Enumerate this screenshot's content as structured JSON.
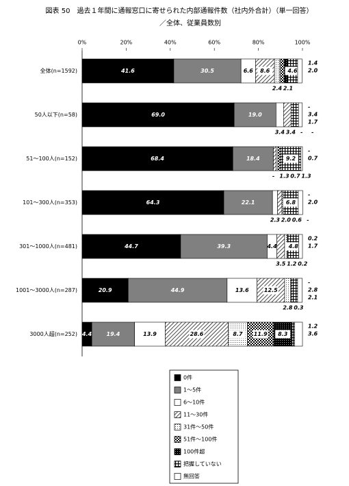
{
  "chart_data": {
    "type": "stacked-barh",
    "title": "図表 50　過去１年間に通報窓口に寄せられた内部通報件数（社内外合計）（単一回答）",
    "subtitle": "／全体、従業員数別",
    "categories": [
      "全体(n=1592)",
      "50人以下(n=58)",
      "51～100人(n=152)",
      "101～300人(n=353)",
      "301～1000人(n=481)",
      "1001～3000人(n=287)",
      "3000人超(n=252)"
    ],
    "xlim": [
      0,
      100
    ],
    "xticks": [
      {
        "value": 0,
        "label": "0%"
      },
      {
        "value": 20,
        "label": "20%"
      },
      {
        "value": 40,
        "label": "40%"
      },
      {
        "value": 60,
        "label": "60%"
      },
      {
        "value": 80,
        "label": "80%"
      },
      {
        "value": 100,
        "label": "100%"
      }
    ],
    "series": [
      {
        "name": "0件",
        "color": "#000000",
        "pattern": "solid",
        "values": [
          41.6,
          69.0,
          68.4,
          64.3,
          44.7,
          20.9,
          4.4
        ],
        "value_labels": [
          "41.6",
          "69.0",
          "68.4",
          "64.3",
          "44.7",
          "20.9",
          "4.4"
        ]
      },
      {
        "name": "1～5件",
        "color": "#808080",
        "pattern": "solid",
        "values": [
          30.5,
          19.0,
          18.4,
          22.1,
          39.3,
          44.9,
          19.4
        ],
        "value_labels": [
          "30.5",
          "19.0",
          "18.4",
          "22.1",
          "39.3",
          "44.9",
          "19.4"
        ]
      },
      {
        "name": "6～10件",
        "color": "#ffffff",
        "pattern": "solid",
        "values": [
          6.6,
          3.4,
          0,
          2.3,
          4.4,
          13.6,
          13.9
        ],
        "value_labels": [
          "6.6",
          "3.4",
          "-",
          "2.3",
          "4.4",
          "13.6",
          "13.9"
        ]
      },
      {
        "name": "11～30件",
        "color": "#000000",
        "pattern": "hatch",
        "values": [
          8.6,
          3.4,
          1.3,
          2.0,
          3.5,
          12.5,
          28.6
        ],
        "value_labels": [
          "8.6",
          "3.4",
          "1.3",
          "2.0",
          "3.5",
          "12.5",
          "28.6"
        ]
      },
      {
        "name": "31件～50件",
        "color": "#000000",
        "pattern": "dots",
        "values": [
          2.4,
          0,
          0.7,
          0.6,
          1.2,
          2.8,
          8.7
        ],
        "value_labels": [
          "2.4",
          "-",
          "0.7",
          "0.6",
          "1.2",
          "2.8",
          "8.7"
        ]
      },
      {
        "name": "51件～100件",
        "color": "#000000",
        "pattern": "checker",
        "values": [
          2.1,
          0,
          1.3,
          0,
          0.2,
          0.3,
          11.9
        ],
        "value_labels": [
          "2.1",
          "-",
          "1.3",
          "-",
          "0.2",
          "0.3",
          "11.9"
        ]
      },
      {
        "name": "100件超",
        "color": "#000000",
        "pattern": "dense",
        "values": [
          1.4,
          0,
          0,
          0,
          0.2,
          0,
          8.3
        ],
        "value_labels": [
          "1.4",
          "-",
          "-",
          "-",
          "0.2",
          "-",
          "8.3"
        ]
      },
      {
        "name": "把握していない",
        "color": "#000000",
        "pattern": "grid",
        "values": [
          4.6,
          3.4,
          9.2,
          6.8,
          4.8,
          2.8,
          1.2
        ],
        "value_labels": [
          "4.6",
          "3.4",
          "9.2",
          "6.8",
          "4.8",
          "2.8",
          "1.2"
        ]
      },
      {
        "name": "無回答",
        "color": "#ffffff",
        "pattern": "solid",
        "values": [
          2.0,
          1.7,
          0.7,
          2.0,
          1.7,
          2.1,
          3.6
        ],
        "value_labels": [
          "2.0",
          "1.7",
          "0.7",
          "2.0",
          "1.7",
          "2.1",
          "3.6"
        ]
      }
    ]
  }
}
